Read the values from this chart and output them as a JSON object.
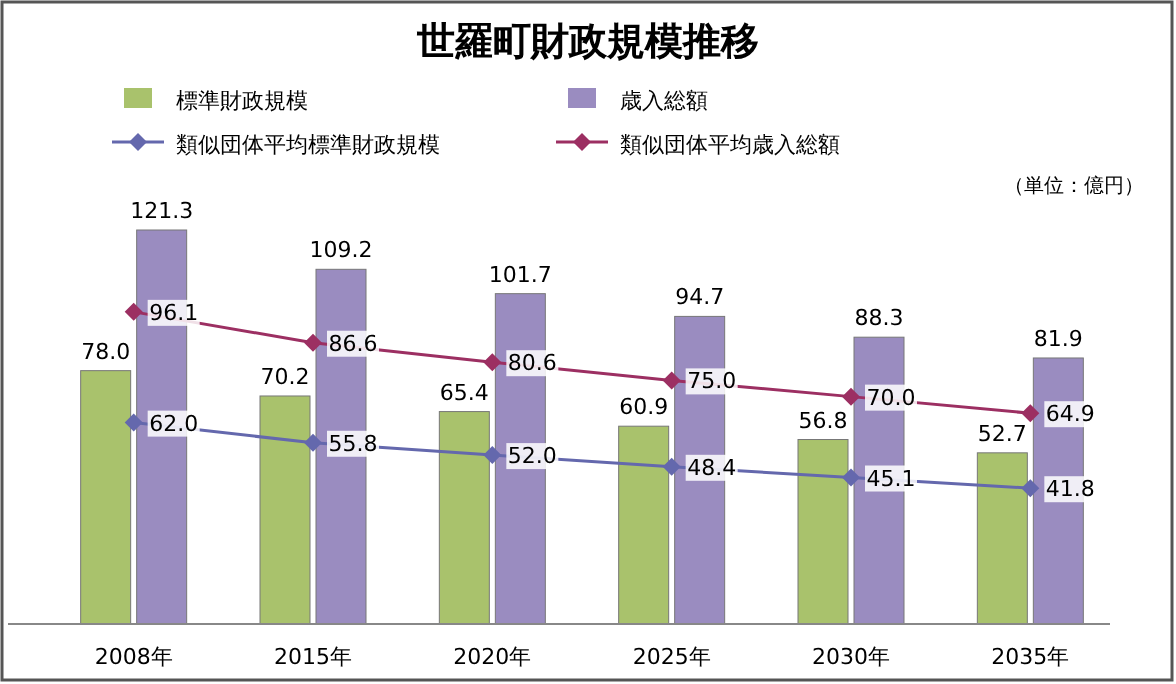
{
  "chart_data": {
    "type": "bar",
    "title": "世羅町財政規模推移",
    "categories": [
      "2008年",
      "2015年",
      "2020年",
      "2025年",
      "2030年",
      "2035年"
    ],
    "series": [
      {
        "name": "標準財政規模",
        "color": "#a9c26c",
        "values": [
          78.0,
          70.2,
          65.4,
          60.9,
          56.8,
          52.7
        ],
        "value_labels": [
          "78.0",
          "70.2",
          "65.4",
          "60.9",
          "56.8",
          "52.7"
        ]
      },
      {
        "name": "歳入総額",
        "color": "#9a8cc0",
        "values": [
          121.3,
          109.2,
          101.7,
          94.7,
          88.3,
          81.9
        ],
        "value_labels": [
          "121.3",
          "109.2",
          "101.7",
          "94.7",
          "88.3",
          "81.9"
        ]
      },
      {
        "name": "類似団体平均標準財政規模",
        "type": "line",
        "color": "#6468ad",
        "values": [
          62.0,
          55.8,
          52.0,
          48.4,
          45.1,
          41.8
        ],
        "value_labels": [
          "62.0",
          "55.8",
          "52.0",
          "48.4",
          "45.1",
          "41.8"
        ]
      },
      {
        "name": "類似団体平均歳入総額",
        "type": "line",
        "color": "#9c2f62",
        "values": [
          96.1,
          86.6,
          80.6,
          75.0,
          70.0,
          64.9
        ],
        "value_labels": [
          "96.1",
          "86.6",
          "80.6",
          "75.0",
          "70.0",
          "64.9"
        ]
      }
    ],
    "legend": "top",
    "marker": "diamond",
    "annotations": [
      "（単位：億円）"
    ]
  }
}
